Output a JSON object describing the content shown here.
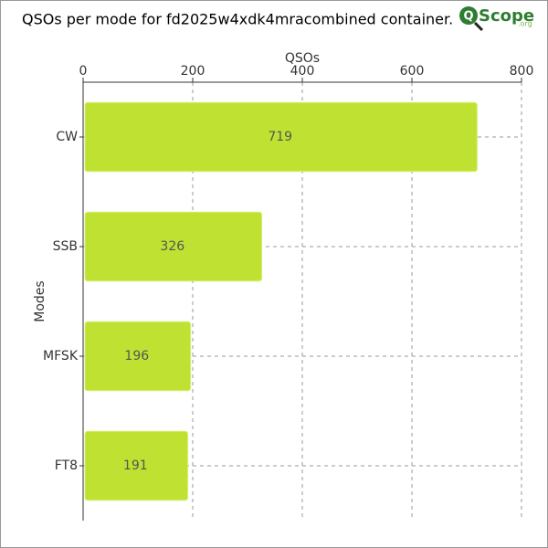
{
  "chart_data": {
    "type": "bar",
    "orientation": "horizontal",
    "title": "QSOs per mode for fd2025w4xdk4mracombined container.",
    "logo": {
      "icon": "Q",
      "name": "Scope",
      "suffix": ".org"
    },
    "x_label": "QSOs",
    "y_label": "Modes",
    "categories": [
      "CW",
      "SSB",
      "MFSK",
      "FT8"
    ],
    "values": [
      719,
      326,
      196,
      191
    ],
    "color": "#bfe232",
    "xlim": [
      0,
      800
    ],
    "xticks": [
      0,
      200,
      400,
      600,
      800
    ],
    "grid": true
  }
}
